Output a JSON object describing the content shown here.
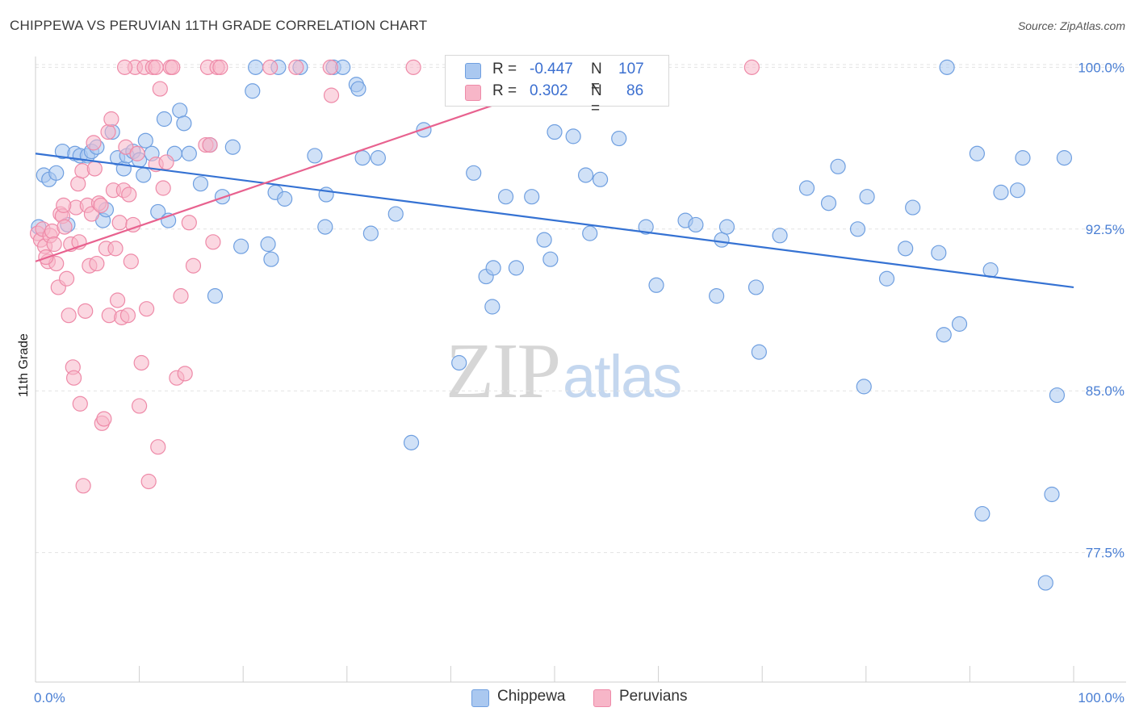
{
  "header": {
    "title": "CHIPPEWA VS PERUVIAN 11TH GRADE CORRELATION CHART",
    "source": "Source: ZipAtlas.com"
  },
  "watermark": {
    "zip": "ZIP",
    "atlas": "atlas"
  },
  "legend": {
    "r_label": "R =",
    "n_label": "N =",
    "chippewa": {
      "r": "-0.447",
      "n": "107"
    },
    "peruvians": {
      "r": "0.302",
      "n": "86"
    }
  },
  "colors": {
    "chippewa_fill": "#aac8f0",
    "chippewa_stroke": "#6f9fe0",
    "chippewa_line": "#3572d3",
    "peruvians_fill": "#f7b6c8",
    "peruvians_stroke": "#ee8aa8",
    "peruvians_line": "#e8628f",
    "tick_text": "#4a7fd4"
  },
  "chart_data": {
    "type": "scatter",
    "title": "CHIPPEWA VS PERUVIAN 11TH GRADE CORRELATION CHART",
    "xlabel": "",
    "ylabel": "11th Grade",
    "xlim": [
      0,
      100
    ],
    "ylim": [
      71.5,
      100.5
    ],
    "x_tick_labels": [
      "0.0%",
      "100.0%"
    ],
    "y_ticks": [
      77.5,
      85.0,
      92.5,
      100.0
    ],
    "y_tick_labels": [
      "77.5%",
      "85.0%",
      "92.5%",
      "100.0%"
    ],
    "grid": true,
    "legend_position": "top-center",
    "series": [
      {
        "name": "Chippewa",
        "trend": {
          "x": [
            0,
            100
          ],
          "y": [
            96.0,
            89.8
          ]
        },
        "points": [
          [
            0.3,
            92.6
          ],
          [
            0.8,
            95.0
          ],
          [
            1.3,
            94.8
          ],
          [
            2.0,
            95.1
          ],
          [
            2.6,
            96.1
          ],
          [
            3.1,
            92.7
          ],
          [
            3.8,
            96.0
          ],
          [
            4.3,
            95.9
          ],
          [
            5.0,
            95.9
          ],
          [
            5.4,
            96.1
          ],
          [
            5.9,
            96.3
          ],
          [
            6.5,
            92.9
          ],
          [
            6.8,
            93.4
          ],
          [
            7.4,
            97.0
          ],
          [
            7.9,
            95.8
          ],
          [
            8.5,
            95.3
          ],
          [
            8.8,
            95.9
          ],
          [
            9.4,
            96.1
          ],
          [
            10.0,
            95.7
          ],
          [
            10.4,
            95.0
          ],
          [
            10.6,
            96.6
          ],
          [
            11.2,
            96.0
          ],
          [
            11.8,
            93.3
          ],
          [
            12.4,
            97.6
          ],
          [
            12.8,
            92.9
          ],
          [
            13.4,
            96.0
          ],
          [
            13.9,
            98.0
          ],
          [
            14.3,
            97.4
          ],
          [
            14.8,
            96.0
          ],
          [
            15.9,
            94.6
          ],
          [
            16.8,
            96.4
          ],
          [
            17.3,
            89.4
          ],
          [
            18.0,
            94.0
          ],
          [
            19.0,
            96.3
          ],
          [
            19.8,
            91.7
          ],
          [
            20.9,
            98.9
          ],
          [
            21.2,
            100.0
          ],
          [
            22.4,
            91.8
          ],
          [
            22.7,
            91.1
          ],
          [
            23.1,
            94.2
          ],
          [
            23.4,
            100.0
          ],
          [
            24.0,
            93.9
          ],
          [
            25.5,
            100.0
          ],
          [
            26.9,
            95.9
          ],
          [
            27.9,
            92.6
          ],
          [
            28.0,
            94.1
          ],
          [
            28.7,
            100.0
          ],
          [
            29.6,
            100.0
          ],
          [
            30.9,
            99.2
          ],
          [
            31.1,
            99.0
          ],
          [
            31.5,
            95.8
          ],
          [
            32.3,
            92.3
          ],
          [
            33.0,
            95.8
          ],
          [
            34.7,
            93.2
          ],
          [
            37.4,
            97.1
          ],
          [
            36.2,
            82.6
          ],
          [
            40.8,
            86.3
          ],
          [
            42.2,
            95.1
          ],
          [
            43.4,
            90.3
          ],
          [
            44.0,
            88.9
          ],
          [
            44.1,
            90.7
          ],
          [
            45.3,
            94.0
          ],
          [
            46.3,
            90.7
          ],
          [
            47.8,
            94.0
          ],
          [
            49.0,
            92.0
          ],
          [
            49.6,
            91.1
          ],
          [
            50.0,
            97.0
          ],
          [
            51.8,
            96.8
          ],
          [
            53.0,
            95.0
          ],
          [
            53.4,
            92.3
          ],
          [
            54.4,
            94.8
          ],
          [
            56.2,
            96.7
          ],
          [
            58.8,
            92.6
          ],
          [
            59.8,
            89.9
          ],
          [
            62.6,
            92.9
          ],
          [
            63.6,
            92.7
          ],
          [
            65.6,
            89.4
          ],
          [
            66.1,
            92.0
          ],
          [
            66.6,
            92.6
          ],
          [
            69.4,
            89.8
          ],
          [
            69.7,
            86.8
          ],
          [
            71.7,
            92.2
          ],
          [
            74.3,
            94.4
          ],
          [
            76.4,
            93.7
          ],
          [
            77.3,
            95.4
          ],
          [
            79.2,
            92.5
          ],
          [
            79.8,
            85.2
          ],
          [
            80.1,
            94.0
          ],
          [
            82.0,
            90.2
          ],
          [
            83.8,
            91.6
          ],
          [
            84.5,
            93.5
          ],
          [
            87.0,
            91.4
          ],
          [
            87.5,
            87.6
          ],
          [
            87.8,
            100.0
          ],
          [
            89.0,
            88.1
          ],
          [
            90.7,
            96.0
          ],
          [
            91.2,
            79.3
          ],
          [
            92.0,
            90.6
          ],
          [
            93.0,
            94.2
          ],
          [
            94.6,
            94.3
          ],
          [
            95.1,
            95.8
          ],
          [
            97.3,
            76.1
          ],
          [
            97.9,
            80.2
          ],
          [
            98.4,
            84.8
          ],
          [
            99.1,
            95.8
          ]
        ]
      },
      {
        "name": "Peruvians",
        "trend": {
          "x": [
            0,
            56
          ],
          "y": [
            91.0,
            100.2
          ]
        },
        "points": [
          [
            0.2,
            92.3
          ],
          [
            0.5,
            92.0
          ],
          [
            0.7,
            92.5
          ],
          [
            0.9,
            91.7
          ],
          [
            1.2,
            91.0
          ],
          [
            1.4,
            92.2
          ],
          [
            1.6,
            92.4
          ],
          [
            1.8,
            91.8
          ],
          [
            2.0,
            90.9
          ],
          [
            2.2,
            89.8
          ],
          [
            2.4,
            93.2
          ],
          [
            2.6,
            93.1
          ],
          [
            2.8,
            92.6
          ],
          [
            3.0,
            90.2
          ],
          [
            3.2,
            88.5
          ],
          [
            3.4,
            91.8
          ],
          [
            3.6,
            86.1
          ],
          [
            3.7,
            85.6
          ],
          [
            3.9,
            93.5
          ],
          [
            4.1,
            94.6
          ],
          [
            4.3,
            84.4
          ],
          [
            4.5,
            95.2
          ],
          [
            4.6,
            80.6
          ],
          [
            4.8,
            88.7
          ],
          [
            5.0,
            93.6
          ],
          [
            5.2,
            90.8
          ],
          [
            5.4,
            93.2
          ],
          [
            5.6,
            96.5
          ],
          [
            5.7,
            95.3
          ],
          [
            5.9,
            90.9
          ],
          [
            6.1,
            93.7
          ],
          [
            6.3,
            93.6
          ],
          [
            6.4,
            83.5
          ],
          [
            6.6,
            83.7
          ],
          [
            6.8,
            91.6
          ],
          [
            7.0,
            97.0
          ],
          [
            7.1,
            88.5
          ],
          [
            7.3,
            97.6
          ],
          [
            7.5,
            94.3
          ],
          [
            7.7,
            91.6
          ],
          [
            7.9,
            89.2
          ],
          [
            8.1,
            92.8
          ],
          [
            8.3,
            88.4
          ],
          [
            8.5,
            94.3
          ],
          [
            8.7,
            96.3
          ],
          [
            8.9,
            88.5
          ],
          [
            9.0,
            94.1
          ],
          [
            9.2,
            91.0
          ],
          [
            9.4,
            92.7
          ],
          [
            9.6,
            100.0
          ],
          [
            9.8,
            96.0
          ],
          [
            10.0,
            84.3
          ],
          [
            10.2,
            86.3
          ],
          [
            10.5,
            100.0
          ],
          [
            10.7,
            88.8
          ],
          [
            10.9,
            80.8
          ],
          [
            11.3,
            100.0
          ],
          [
            11.6,
            95.5
          ],
          [
            11.8,
            82.4
          ],
          [
            12.0,
            99.0
          ],
          [
            12.3,
            94.4
          ],
          [
            12.6,
            95.6
          ],
          [
            13.0,
            100.0
          ],
          [
            13.2,
            100.0
          ],
          [
            13.6,
            85.6
          ],
          [
            14.0,
            89.4
          ],
          [
            14.4,
            85.8
          ],
          [
            14.8,
            92.8
          ],
          [
            15.2,
            90.8
          ],
          [
            16.4,
            96.4
          ],
          [
            16.6,
            100.0
          ],
          [
            16.8,
            96.4
          ],
          [
            17.1,
            91.9
          ],
          [
            17.5,
            100.0
          ],
          [
            17.8,
            100.0
          ],
          [
            11.6,
            100.0
          ],
          [
            8.6,
            100.0
          ],
          [
            22.6,
            100.0
          ],
          [
            25.1,
            100.0
          ],
          [
            28.4,
            100.0
          ],
          [
            28.5,
            98.7
          ],
          [
            69.0,
            100.0
          ],
          [
            36.4,
            100.0
          ],
          [
            2.7,
            93.6
          ],
          [
            4.2,
            91.9
          ],
          [
            1.0,
            91.2
          ]
        ]
      }
    ]
  },
  "bottom_legend": {
    "chippewa": "Chippewa",
    "peruvians": "Peruvians"
  }
}
